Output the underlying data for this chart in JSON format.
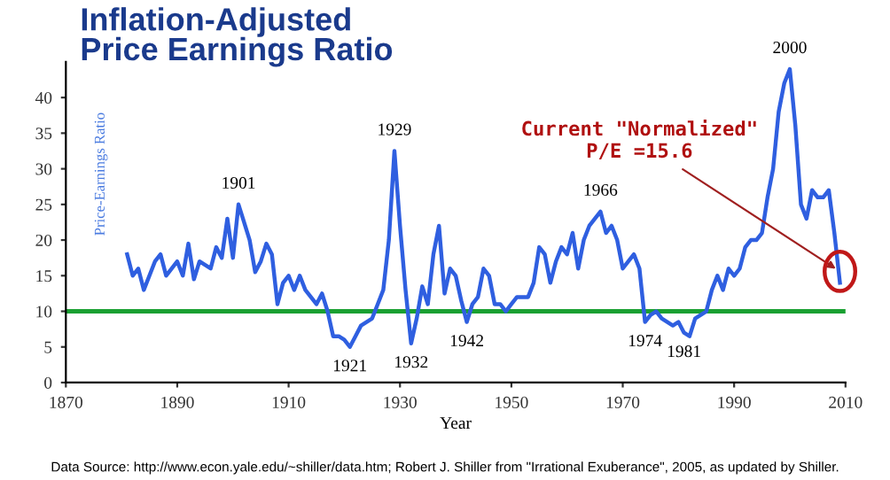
{
  "chart_data": {
    "type": "line",
    "title": "Inflation-Adjusted\nPrice Earnings Ratio",
    "xlabel": "Year",
    "ylabel": "Price-Earnings Ratio",
    "x": [
      1881,
      1882,
      1883,
      1884,
      1886,
      1887,
      1888,
      1890,
      1891,
      1892,
      1893,
      1894,
      1896,
      1897,
      1898,
      1899,
      1900,
      1901,
      1902,
      1903,
      1904,
      1905,
      1906,
      1907,
      1908,
      1909,
      1910,
      1911,
      1912,
      1913,
      1914,
      1915,
      1916,
      1917,
      1918,
      1919,
      1920,
      1921,
      1922,
      1923,
      1924,
      1925,
      1926,
      1927,
      1928,
      1929,
      1930,
      1931,
      1932,
      1933,
      1934,
      1935,
      1936,
      1937,
      1938,
      1939,
      1940,
      1941,
      1942,
      1943,
      1944,
      1945,
      1946,
      1947,
      1948,
      1949,
      1950,
      1951,
      1952,
      1953,
      1954,
      1955,
      1956,
      1957,
      1958,
      1959,
      1960,
      1961,
      1962,
      1963,
      1964,
      1965,
      1966,
      1967,
      1968,
      1969,
      1970,
      1971,
      1972,
      1973,
      1974,
      1975,
      1976,
      1977,
      1978,
      1979,
      1980,
      1981,
      1982,
      1983,
      1984,
      1985,
      1986,
      1987,
      1988,
      1989,
      1990,
      1991,
      1992,
      1993,
      1994,
      1995,
      1996,
      1997,
      1998,
      1999,
      2000,
      2001,
      2002,
      2003,
      2004,
      2005,
      2006,
      2007,
      2008,
      2009
    ],
    "series": [
      {
        "color": "#2f5fe0",
        "values": [
          18,
          15,
          16,
          13,
          17,
          18,
          15,
          17,
          15,
          19.5,
          14.5,
          17,
          16,
          19,
          17.5,
          23,
          17.5,
          25,
          22.5,
          20,
          15.5,
          17,
          19.5,
          18,
          11,
          14,
          15,
          13,
          15,
          13,
          12,
          11,
          12.5,
          10,
          6.5,
          6.5,
          6,
          5,
          6.5,
          8,
          8.5,
          9,
          11,
          13,
          20,
          32.5,
          22,
          13,
          5.5,
          9,
          13.5,
          11,
          18,
          22,
          12.5,
          16,
          15,
          11.5,
          8.5,
          11,
          12,
          16,
          15,
          11,
          11,
          10,
          11,
          12,
          12,
          12,
          14,
          19,
          18,
          14,
          17,
          19,
          18,
          21,
          16,
          20,
          22,
          23,
          24,
          21,
          22,
          20,
          16,
          17,
          18,
          16,
          8.5,
          9.5,
          10,
          9,
          8.5,
          8,
          8.5,
          7,
          6.5,
          9,
          9.5,
          10,
          13,
          15,
          13,
          16,
          15,
          16,
          19,
          20,
          20,
          21,
          26,
          30,
          38,
          42,
          44,
          36,
          25,
          23,
          27,
          26,
          26,
          27,
          21,
          14
        ]
      }
    ],
    "xlim": [
      1870,
      2010
    ],
    "xticks": [
      1870,
      1890,
      1910,
      1930,
      1950,
      1970,
      1990,
      2010
    ],
    "ylim": [
      0,
      45
    ],
    "yticks": [
      0,
      5,
      10,
      15,
      20,
      25,
      30,
      35,
      40
    ],
    "ref_lines": [
      {
        "axis": "y",
        "value": 10,
        "color": "#1aa032"
      }
    ],
    "grid": false,
    "legend": false,
    "annotations": [
      {
        "text": "1901",
        "x": 1901,
        "y": 25
      },
      {
        "text": "1921",
        "x": 1921,
        "y": 5
      },
      {
        "text": "1929",
        "x": 1929,
        "y": 32.5
      },
      {
        "text": "1932",
        "x": 1932,
        "y": 5.5
      },
      {
        "text": "1942",
        "x": 1942,
        "y": 8.5
      },
      {
        "text": "1966",
        "x": 1966,
        "y": 24
      },
      {
        "text": "1974",
        "x": 1974,
        "y": 8.5
      },
      {
        "text": "1981",
        "x": 1981,
        "y": 7
      },
      {
        "text": "2000",
        "x": 2000,
        "y": 44
      },
      {
        "text": "Current \"Normalized\"\nP/E =15.6",
        "x": 2009,
        "y": 15.6
      },
      "Data Source: http://www.econ.yale.edu/~shiller/data.htm; Robert J. Shiller from \"Irrational Exuberance\", 2005, as updated by Shiller."
    ]
  }
}
